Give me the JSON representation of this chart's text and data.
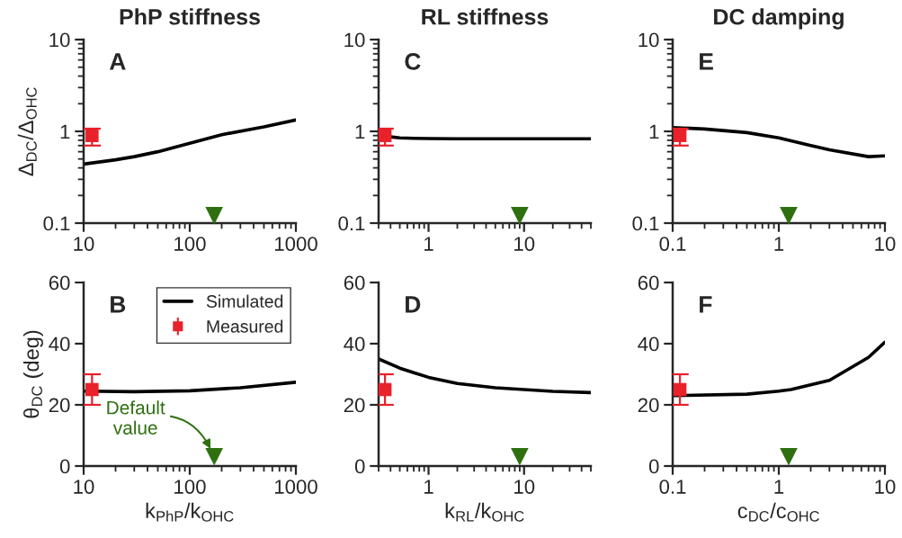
{
  "chart_data": [
    {
      "type": "line",
      "title": "PhP stiffness",
      "ylabel": "Δ$_{DC}$/Δ$_{OHC}$",
      "log": "xy",
      "xlim": [
        10,
        1000
      ],
      "ylim": [
        0.1,
        10
      ],
      "xticks": [
        10,
        100,
        1000
      ],
      "yticks": [
        0.1,
        1,
        10
      ],
      "annotations": [
        "A"
      ],
      "series": [
        {
          "color": "#000000",
          "x": [
            10,
            20,
            30,
            50,
            100,
            200,
            500,
            1000
          ],
          "values": [
            0.44,
            0.49,
            0.53,
            0.6,
            0.74,
            0.92,
            1.12,
            1.33
          ]
        },
        {
          "type": "scatter",
          "color": "#e8212b",
          "marker": "square",
          "x": [
            12
          ],
          "values": [
            0.9
          ],
          "errors": [
            [
              0.7,
              1.07
            ]
          ]
        },
        {
          "type": "scatter",
          "color": "#2e7010",
          "marker": "triangle",
          "x": [
            170
          ],
          "values": [
            0.12
          ]
        }
      ]
    },
    {
      "type": "line",
      "title": "RL stiffness",
      "log": "xy",
      "xlim": [
        0.3,
        50
      ],
      "ylim": [
        0.1,
        10
      ],
      "xticks": [
        1,
        10
      ],
      "yticks": [
        0.1,
        1,
        10
      ],
      "annotations": [
        "C"
      ],
      "series": [
        {
          "color": "#000000",
          "x": [
            0.3,
            0.4,
            0.5,
            0.7,
            1,
            2,
            5,
            10,
            20,
            50
          ],
          "values": [
            0.9,
            0.87,
            0.85,
            0.84,
            0.835,
            0.83,
            0.83,
            0.83,
            0.83,
            0.83
          ]
        },
        {
          "type": "scatter",
          "color": "#e8212b",
          "marker": "square",
          "x": [
            0.35
          ],
          "values": [
            0.9
          ],
          "errors": [
            [
              0.7,
              1.07
            ]
          ]
        },
        {
          "type": "scatter",
          "color": "#2e7010",
          "marker": "triangle",
          "x": [
            9
          ],
          "values": [
            0.12
          ]
        }
      ]
    },
    {
      "type": "line",
      "title": "DC damping",
      "log": "xy",
      "xlim": [
        0.1,
        10
      ],
      "ylim": [
        0.1,
        10
      ],
      "xticks": [
        0.1,
        1,
        10
      ],
      "yticks": [
        0.1,
        1,
        10
      ],
      "annotations": [
        "E"
      ],
      "series": [
        {
          "color": "#000000",
          "x": [
            0.1,
            0.2,
            0.5,
            1,
            2,
            3,
            7,
            10
          ],
          "values": [
            1.1,
            1.06,
            0.97,
            0.85,
            0.7,
            0.63,
            0.53,
            0.54
          ]
        },
        {
          "type": "scatter",
          "color": "#e8212b",
          "marker": "square",
          "x": [
            0.117
          ],
          "values": [
            0.9
          ],
          "errors": [
            [
              0.7,
              1.07
            ]
          ]
        },
        {
          "type": "scatter",
          "color": "#2e7010",
          "marker": "triangle",
          "x": [
            1.24
          ],
          "values": [
            0.12
          ]
        }
      ]
    },
    {
      "type": "line",
      "xlabel": "k$_{PhP}$/k$_{OHC}$",
      "ylabel": "θ$_{DC}$ (deg)",
      "log": "x",
      "xlim": [
        10,
        1000
      ],
      "ylim": [
        0,
        60
      ],
      "xticks": [
        10,
        100,
        1000
      ],
      "yticks": [
        0,
        20,
        40,
        60
      ],
      "legend": "top right",
      "annotations": [
        "B",
        {
          "text": "Default value",
          "x": 170,
          "y": 3
        }
      ],
      "series": [
        {
          "name": "Simulated",
          "color": "#000000",
          "x": [
            10,
            30,
            100,
            300,
            1000
          ],
          "values": [
            24.5,
            24.3,
            24.6,
            25.6,
            27.4
          ]
        },
        {
          "type": "scatter",
          "name": "Measured",
          "color": "#e8212b",
          "marker": "square",
          "x": [
            12
          ],
          "values": [
            25
          ],
          "errors": [
            [
              20,
              30
            ]
          ]
        },
        {
          "type": "scatter",
          "color": "#2e7010",
          "marker": "triangle",
          "x": [
            170
          ],
          "values": [
            3
          ]
        }
      ]
    },
    {
      "type": "line",
      "xlabel": "k$_{RL}$/k$_{OHC}$",
      "log": "x",
      "xlim": [
        0.3,
        50
      ],
      "ylim": [
        0,
        60
      ],
      "xticks": [
        1,
        10
      ],
      "yticks": [
        0,
        20,
        40,
        60
      ],
      "annotations": [
        "D"
      ],
      "series": [
        {
          "color": "#000000",
          "x": [
            0.3,
            0.5,
            0.7,
            1,
            2,
            5,
            10,
            20,
            50
          ],
          "values": [
            35,
            32,
            30.5,
            29,
            27,
            25.6,
            25,
            24.4,
            24
          ]
        },
        {
          "type": "scatter",
          "color": "#e8212b",
          "marker": "square",
          "x": [
            0.35
          ],
          "values": [
            25
          ],
          "errors": [
            [
              20,
              30
            ]
          ]
        },
        {
          "type": "scatter",
          "color": "#2e7010",
          "marker": "triangle",
          "x": [
            9
          ],
          "values": [
            3
          ]
        }
      ]
    },
    {
      "type": "line",
      "xlabel": "c$_{DC}$/c$_{OHC}$",
      "log": "x",
      "xlim": [
        0.1,
        10
      ],
      "ylim": [
        0,
        60
      ],
      "xticks": [
        0.1,
        1,
        10
      ],
      "yticks": [
        0,
        20,
        40,
        60
      ],
      "annotations": [
        "F"
      ],
      "series": [
        {
          "color": "#000000",
          "x": [
            0.1,
            0.5,
            1,
            1.3,
            3,
            7,
            10
          ],
          "values": [
            23,
            23.5,
            24.5,
            25,
            28,
            35.5,
            40.5
          ]
        },
        {
          "type": "scatter",
          "color": "#e8212b",
          "marker": "square",
          "x": [
            0.117
          ],
          "values": [
            25
          ],
          "errors": [
            [
              20,
              30
            ]
          ]
        },
        {
          "type": "scatter",
          "color": "#2e7010",
          "marker": "triangle",
          "x": [
            1.24
          ],
          "values": [
            3
          ]
        }
      ]
    }
  ]
}
